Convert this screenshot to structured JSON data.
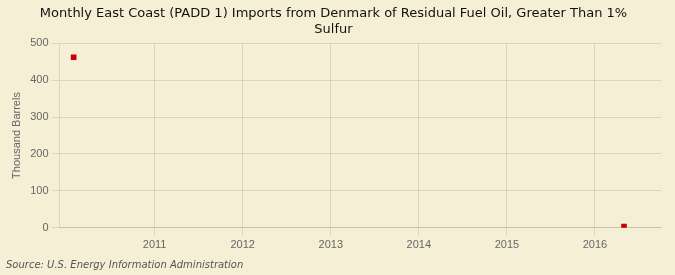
{
  "chart_data": {
    "type": "scatter",
    "title": "Monthly East Coast (PADD 1) Imports from Denmark of Residual Fuel Oil, Greater Than 1%\nSulfur",
    "ylabel": "Thousand Barrels",
    "source": "Source: U.S. Energy Information Administration",
    "x": [
      2010.08,
      2016.33
    ],
    "values": [
      462,
      3
    ],
    "color": "#cc0000",
    "marker": "square",
    "xlim": [
      2009.92,
      2016.75
    ],
    "ylim": [
      0,
      500
    ],
    "xticks": [
      2011,
      2012,
      2013,
      2014,
      2015,
      2016
    ],
    "yticks": [
      0,
      100,
      200,
      300,
      400,
      500
    ],
    "grid": true
  }
}
